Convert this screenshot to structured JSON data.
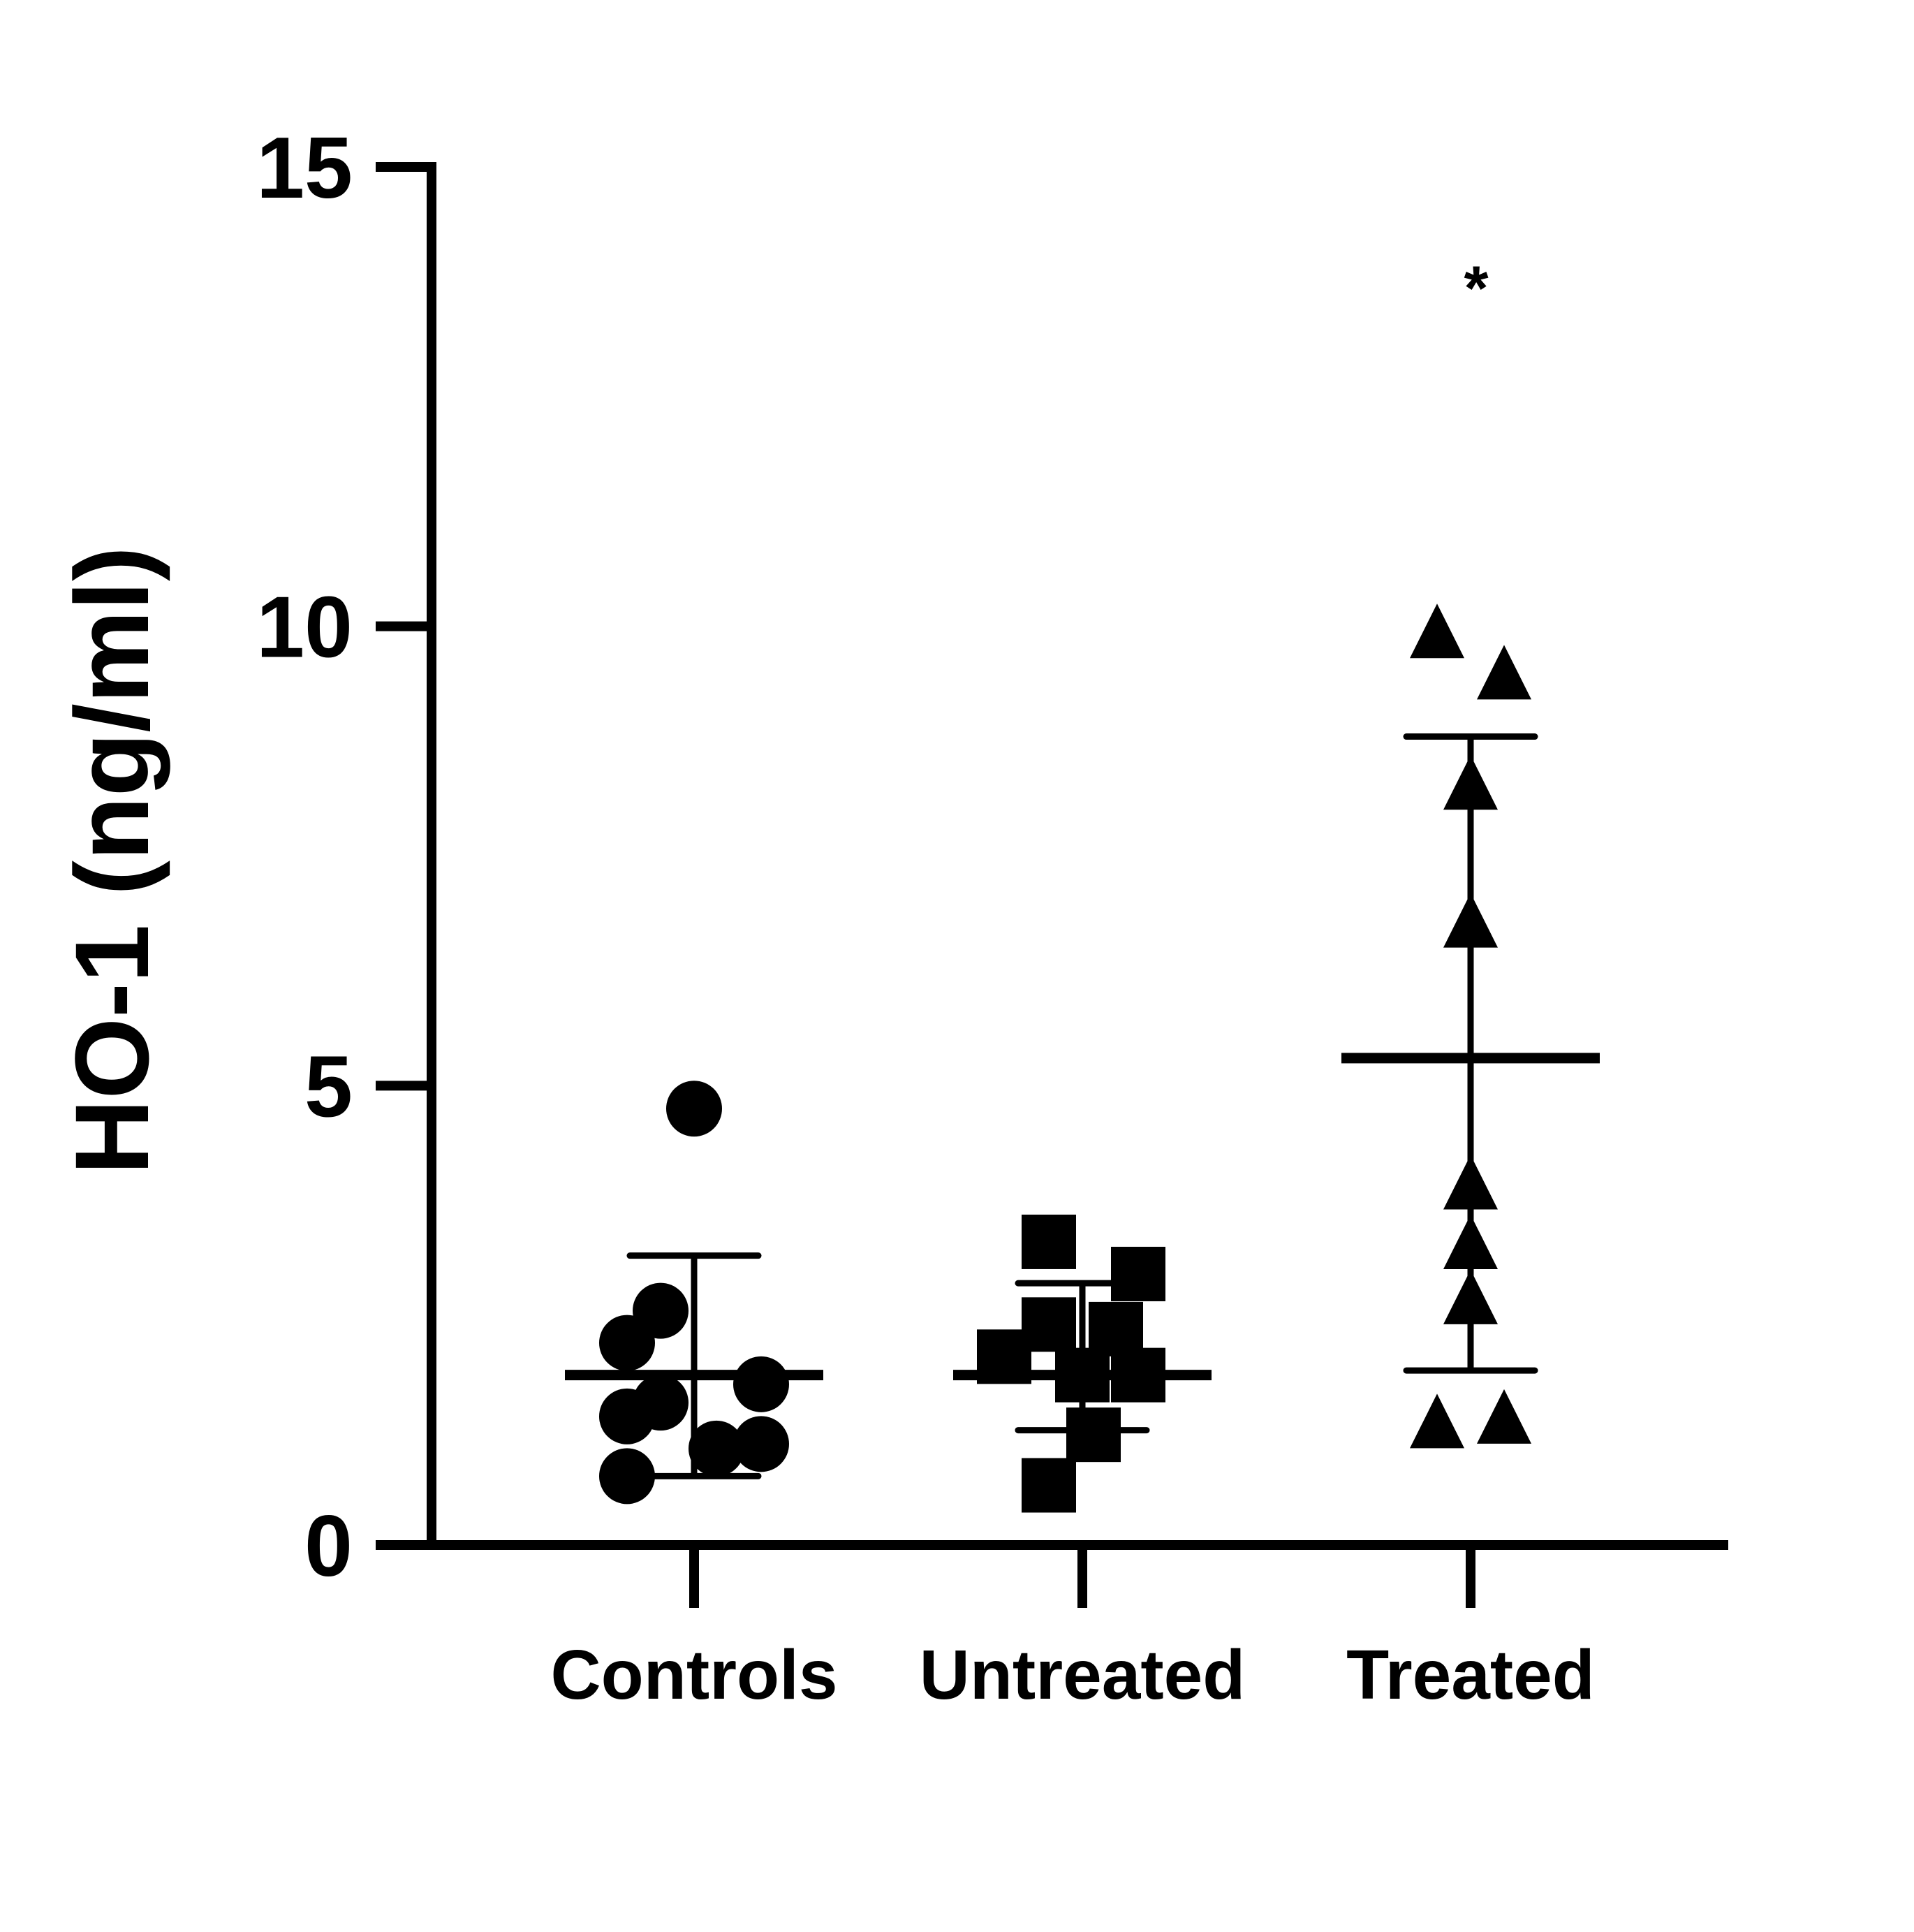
{
  "chart_data": {
    "type": "scatter",
    "title": "",
    "xlabel": "",
    "ylabel": "HO-1 (ng/ml)",
    "ylim": [
      0,
      15
    ],
    "yticks": [
      {
        "value": 0,
        "label": "0"
      },
      {
        "value": 5,
        "label": "5"
      },
      {
        "value": 10,
        "label": "10"
      },
      {
        "value": 15,
        "label": "15"
      }
    ],
    "grid": false,
    "legend": "none",
    "categories": [
      "Controls",
      "Untreated",
      "Treated"
    ],
    "series": [
      {
        "category": "Controls",
        "marker": "circle",
        "color": "#000000",
        "points": [
          {
            "offset": 0.0,
            "y": 4.75
          },
          {
            "offset": -0.15,
            "y": 2.55
          },
          {
            "offset": -0.3,
            "y": 2.2
          },
          {
            "offset": 0.3,
            "y": 1.75
          },
          {
            "offset": -0.15,
            "y": 1.55
          },
          {
            "offset": -0.3,
            "y": 1.4
          },
          {
            "offset": 0.3,
            "y": 1.1
          },
          {
            "offset": 0.1,
            "y": 1.05
          },
          {
            "offset": -0.3,
            "y": 0.75
          }
        ],
        "mean": 1.85,
        "error_upper": 3.15,
        "error_lower": 0.75
      },
      {
        "category": "Untreated",
        "marker": "square",
        "color": "#000000",
        "points": [
          {
            "offset": -0.15,
            "y": 3.3
          },
          {
            "offset": 0.25,
            "y": 2.95
          },
          {
            "offset": -0.15,
            "y": 2.4
          },
          {
            "offset": 0.15,
            "y": 2.35
          },
          {
            "offset": -0.35,
            "y": 2.05
          },
          {
            "offset": 0.0,
            "y": 1.85
          },
          {
            "offset": 0.25,
            "y": 1.85
          },
          {
            "offset": 0.05,
            "y": 1.2
          },
          {
            "offset": -0.15,
            "y": 0.65
          }
        ],
        "mean": 1.85,
        "error_upper": 2.85,
        "error_lower": 1.25
      },
      {
        "category": "Treated",
        "marker": "triangle",
        "color": "#000000",
        "points": [
          {
            "offset": -0.15,
            "y": 9.95
          },
          {
            "offset": 0.15,
            "y": 9.5
          },
          {
            "offset": 0.0,
            "y": 8.3
          },
          {
            "offset": 0.0,
            "y": 6.8
          },
          {
            "offset": 0.0,
            "y": 3.95
          },
          {
            "offset": 0.0,
            "y": 3.3
          },
          {
            "offset": 0.0,
            "y": 2.7
          },
          {
            "offset": -0.15,
            "y": 1.35
          },
          {
            "offset": 0.15,
            "y": 1.4
          }
        ],
        "mean": 5.3,
        "error_upper": 8.8,
        "error_lower": 1.9
      }
    ],
    "annotations": [
      {
        "category": "Treated",
        "y": 13.9,
        "text": "*"
      }
    ]
  }
}
